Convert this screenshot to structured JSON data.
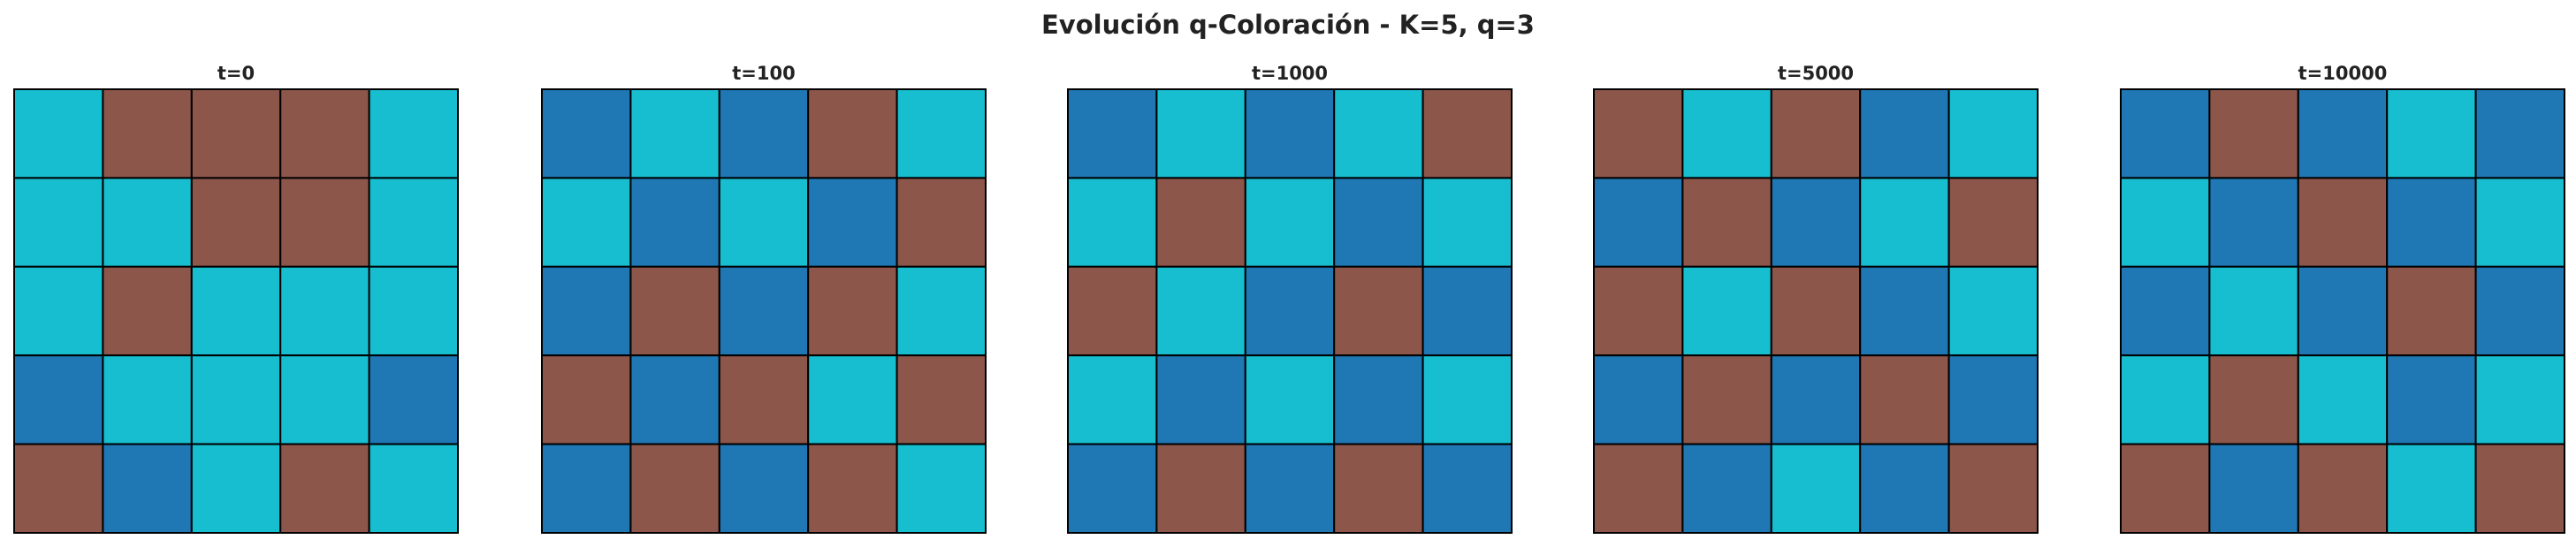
{
  "chart_data": {
    "type": "heatmap",
    "title": "Evolución q-Coloración - K=5, q=3",
    "grid_size": 5,
    "palette": {
      "0": "#1f77b4",
      "1": "#8c564b",
      "2": "#17becf"
    },
    "panels": [
      {
        "title": "t=0",
        "grid": [
          [
            2,
            1,
            1,
            1,
            2
          ],
          [
            2,
            2,
            1,
            1,
            2
          ],
          [
            2,
            1,
            2,
            2,
            2
          ],
          [
            0,
            2,
            2,
            2,
            0
          ],
          [
            1,
            0,
            2,
            1,
            2
          ]
        ]
      },
      {
        "title": "t=100",
        "grid": [
          [
            0,
            2,
            0,
            1,
            2
          ],
          [
            2,
            0,
            2,
            0,
            1
          ],
          [
            0,
            1,
            0,
            1,
            2
          ],
          [
            1,
            0,
            1,
            2,
            1
          ],
          [
            0,
            1,
            0,
            1,
            2
          ]
        ]
      },
      {
        "title": "t=1000",
        "grid": [
          [
            0,
            2,
            0,
            2,
            1
          ],
          [
            2,
            1,
            2,
            0,
            2
          ],
          [
            1,
            2,
            0,
            1,
            0
          ],
          [
            2,
            0,
            2,
            0,
            2
          ],
          [
            0,
            1,
            0,
            1,
            0
          ]
        ]
      },
      {
        "title": "t=5000",
        "grid": [
          [
            1,
            2,
            1,
            0,
            2
          ],
          [
            0,
            1,
            0,
            2,
            1
          ],
          [
            1,
            2,
            1,
            0,
            2
          ],
          [
            0,
            1,
            0,
            1,
            0
          ],
          [
            1,
            0,
            2,
            0,
            1
          ]
        ]
      },
      {
        "title": "t=10000",
        "grid": [
          [
            0,
            1,
            0,
            2,
            0
          ],
          [
            2,
            0,
            1,
            0,
            2
          ],
          [
            0,
            2,
            0,
            1,
            0
          ],
          [
            2,
            1,
            2,
            0,
            2
          ],
          [
            1,
            0,
            1,
            2,
            1
          ]
        ]
      }
    ]
  }
}
